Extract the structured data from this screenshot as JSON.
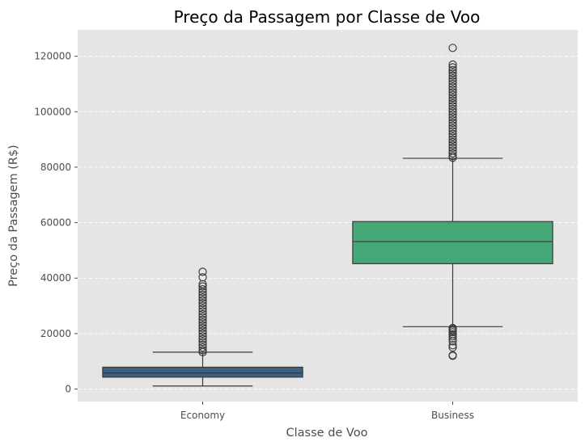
{
  "chart_data": {
    "type": "box",
    "title": "Preço da Passagem por Classe de Voo",
    "xlabel": "Classe de Voo",
    "ylabel": "Preço da Passagem (R$)",
    "ylim": [
      -4500,
      129500
    ],
    "yticks": [
      0,
      20000,
      40000,
      60000,
      80000,
      100000,
      120000
    ],
    "ytick_labels": [
      "0",
      "20000",
      "40000",
      "60000",
      "80000",
      "100000",
      "120000"
    ],
    "grid": "horizontal dashed",
    "background": "#e5e5e5",
    "categories": [
      "Economy",
      "Business"
    ],
    "boxes": [
      {
        "category": "Economy",
        "color": "#3b6080",
        "whisker_low": 1100,
        "q1": 4300,
        "median": 5800,
        "q3": 7900,
        "whisker_high": 13300,
        "outliers": [
          13300,
          14000,
          15000,
          16000,
          17000,
          18000,
          19000,
          20000,
          21000,
          22000,
          23000,
          24000,
          25000,
          26000,
          27000,
          28000,
          29000,
          30000,
          31000,
          32000,
          33000,
          34000,
          35000,
          36000,
          37000,
          37800,
          40300,
          42300
        ]
      },
      {
        "category": "Business",
        "color": "#44a876",
        "whisker_low": 22500,
        "q1": 45200,
        "median": 53200,
        "q3": 60400,
        "whisker_high": 83200,
        "outliers_low": [
          12000,
          12200,
          15000,
          15800,
          17200,
          18200,
          19000,
          19800,
          20500,
          21100,
          21600,
          22000
        ],
        "outliers_high": [
          83400,
          84000,
          85000,
          86000,
          87000,
          88000,
          89000,
          90000,
          91000,
          92000,
          93000,
          94000,
          95000,
          96000,
          97000,
          98000,
          99000,
          100000,
          101000,
          102000,
          103000,
          104000,
          105000,
          106000,
          107000,
          108000,
          109000,
          110000,
          111000,
          112000,
          113000,
          114000,
          115000,
          116000,
          117000,
          123000
        ]
      }
    ]
  }
}
